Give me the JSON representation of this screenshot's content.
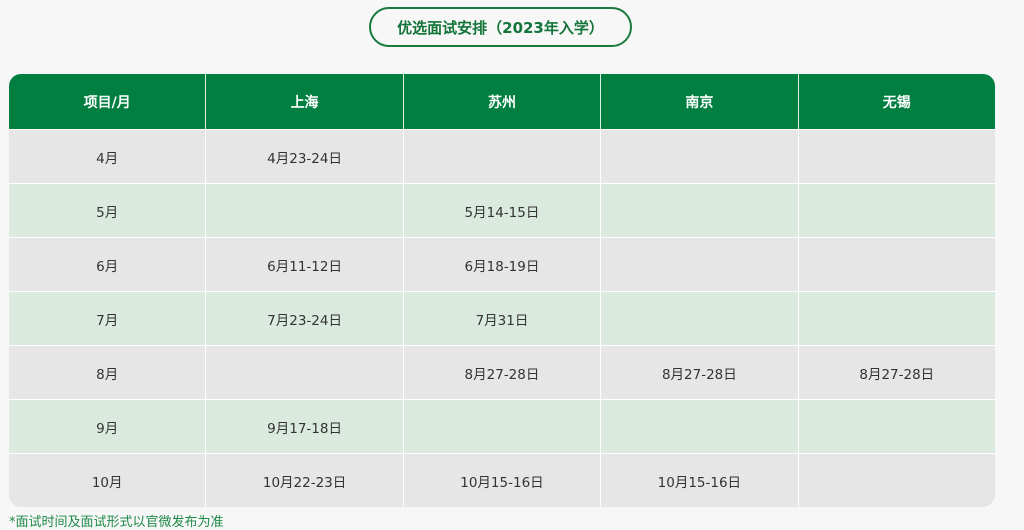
{
  "title": "优选面试安排（2023年入学）",
  "colors": {
    "header": "#007f40",
    "row_gray": "#e6e6e6",
    "row_green": "#dbeadf",
    "accent": "#13743a"
  },
  "table": {
    "headers": [
      "项目/月",
      "上海",
      "苏州",
      "南京",
      "无锡"
    ],
    "rows": [
      [
        "4月",
        "4月23-24日",
        "",
        "",
        ""
      ],
      [
        "5月",
        "",
        "5月14-15日",
        "",
        ""
      ],
      [
        "6月",
        "6月11-12日",
        "6月18-19日",
        "",
        ""
      ],
      [
        "7月",
        "7月23-24日",
        "7月31日",
        "",
        ""
      ],
      [
        "8月",
        "",
        "8月27-28日",
        "8月27-28日",
        "8月27-28日"
      ],
      [
        "9月",
        "9月17-18日",
        "",
        "",
        ""
      ],
      [
        "10月",
        "10月22-23日",
        "10月15-16日",
        "10月15-16日",
        ""
      ]
    ]
  },
  "note": "*面试时间及面试形式以官微发布为准"
}
